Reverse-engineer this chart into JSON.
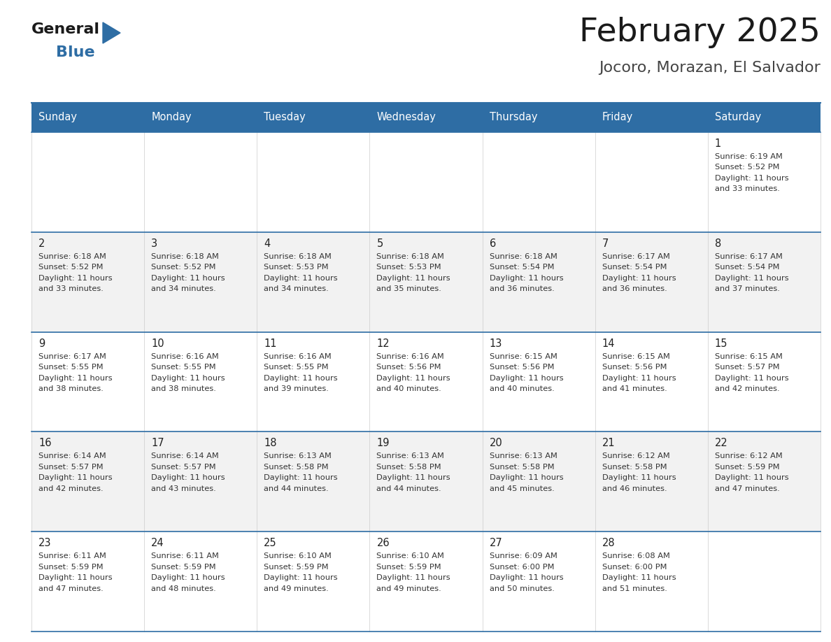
{
  "title": "February 2025",
  "subtitle": "Jocoro, Morazan, El Salvador",
  "header_bg": "#2E6DA4",
  "header_text": "#FFFFFF",
  "cell_bg_white": "#FFFFFF",
  "cell_bg_gray": "#F2F2F2",
  "day_num_color": "#222222",
  "info_text_color": "#333333",
  "border_color": "#2E6DA4",
  "days_of_week": [
    "Sunday",
    "Monday",
    "Tuesday",
    "Wednesday",
    "Thursday",
    "Friday",
    "Saturday"
  ],
  "weeks": [
    [
      null,
      null,
      null,
      null,
      null,
      null,
      1
    ],
    [
      2,
      3,
      4,
      5,
      6,
      7,
      8
    ],
    [
      9,
      10,
      11,
      12,
      13,
      14,
      15
    ],
    [
      16,
      17,
      18,
      19,
      20,
      21,
      22
    ],
    [
      23,
      24,
      25,
      26,
      27,
      28,
      null
    ]
  ],
  "cell_data": {
    "1": {
      "rise": "6:19 AM",
      "set": "5:52 PM",
      "hours": 11,
      "mins": 33
    },
    "2": {
      "rise": "6:18 AM",
      "set": "5:52 PM",
      "hours": 11,
      "mins": 33
    },
    "3": {
      "rise": "6:18 AM",
      "set": "5:52 PM",
      "hours": 11,
      "mins": 34
    },
    "4": {
      "rise": "6:18 AM",
      "set": "5:53 PM",
      "hours": 11,
      "mins": 34
    },
    "5": {
      "rise": "6:18 AM",
      "set": "5:53 PM",
      "hours": 11,
      "mins": 35
    },
    "6": {
      "rise": "6:18 AM",
      "set": "5:54 PM",
      "hours": 11,
      "mins": 36
    },
    "7": {
      "rise": "6:17 AM",
      "set": "5:54 PM",
      "hours": 11,
      "mins": 36
    },
    "8": {
      "rise": "6:17 AM",
      "set": "5:54 PM",
      "hours": 11,
      "mins": 37
    },
    "9": {
      "rise": "6:17 AM",
      "set": "5:55 PM",
      "hours": 11,
      "mins": 38
    },
    "10": {
      "rise": "6:16 AM",
      "set": "5:55 PM",
      "hours": 11,
      "mins": 38
    },
    "11": {
      "rise": "6:16 AM",
      "set": "5:55 PM",
      "hours": 11,
      "mins": 39
    },
    "12": {
      "rise": "6:16 AM",
      "set": "5:56 PM",
      "hours": 11,
      "mins": 40
    },
    "13": {
      "rise": "6:15 AM",
      "set": "5:56 PM",
      "hours": 11,
      "mins": 40
    },
    "14": {
      "rise": "6:15 AM",
      "set": "5:56 PM",
      "hours": 11,
      "mins": 41
    },
    "15": {
      "rise": "6:15 AM",
      "set": "5:57 PM",
      "hours": 11,
      "mins": 42
    },
    "16": {
      "rise": "6:14 AM",
      "set": "5:57 PM",
      "hours": 11,
      "mins": 42
    },
    "17": {
      "rise": "6:14 AM",
      "set": "5:57 PM",
      "hours": 11,
      "mins": 43
    },
    "18": {
      "rise": "6:13 AM",
      "set": "5:58 PM",
      "hours": 11,
      "mins": 44
    },
    "19": {
      "rise": "6:13 AM",
      "set": "5:58 PM",
      "hours": 11,
      "mins": 44
    },
    "20": {
      "rise": "6:13 AM",
      "set": "5:58 PM",
      "hours": 11,
      "mins": 45
    },
    "21": {
      "rise": "6:12 AM",
      "set": "5:58 PM",
      "hours": 11,
      "mins": 46
    },
    "22": {
      "rise": "6:12 AM",
      "set": "5:59 PM",
      "hours": 11,
      "mins": 47
    },
    "23": {
      "rise": "6:11 AM",
      "set": "5:59 PM",
      "hours": 11,
      "mins": 47
    },
    "24": {
      "rise": "6:11 AM",
      "set": "5:59 PM",
      "hours": 11,
      "mins": 48
    },
    "25": {
      "rise": "6:10 AM",
      "set": "5:59 PM",
      "hours": 11,
      "mins": 49
    },
    "26": {
      "rise": "6:10 AM",
      "set": "5:59 PM",
      "hours": 11,
      "mins": 49
    },
    "27": {
      "rise": "6:09 AM",
      "set": "6:00 PM",
      "hours": 11,
      "mins": 50
    },
    "28": {
      "rise": "6:08 AM",
      "set": "6:00 PM",
      "hours": 11,
      "mins": 51
    }
  },
  "logo_general_color": "#1a1a1a",
  "logo_blue_color": "#2E6DA4",
  "logo_triangle_color": "#2E6DA4"
}
